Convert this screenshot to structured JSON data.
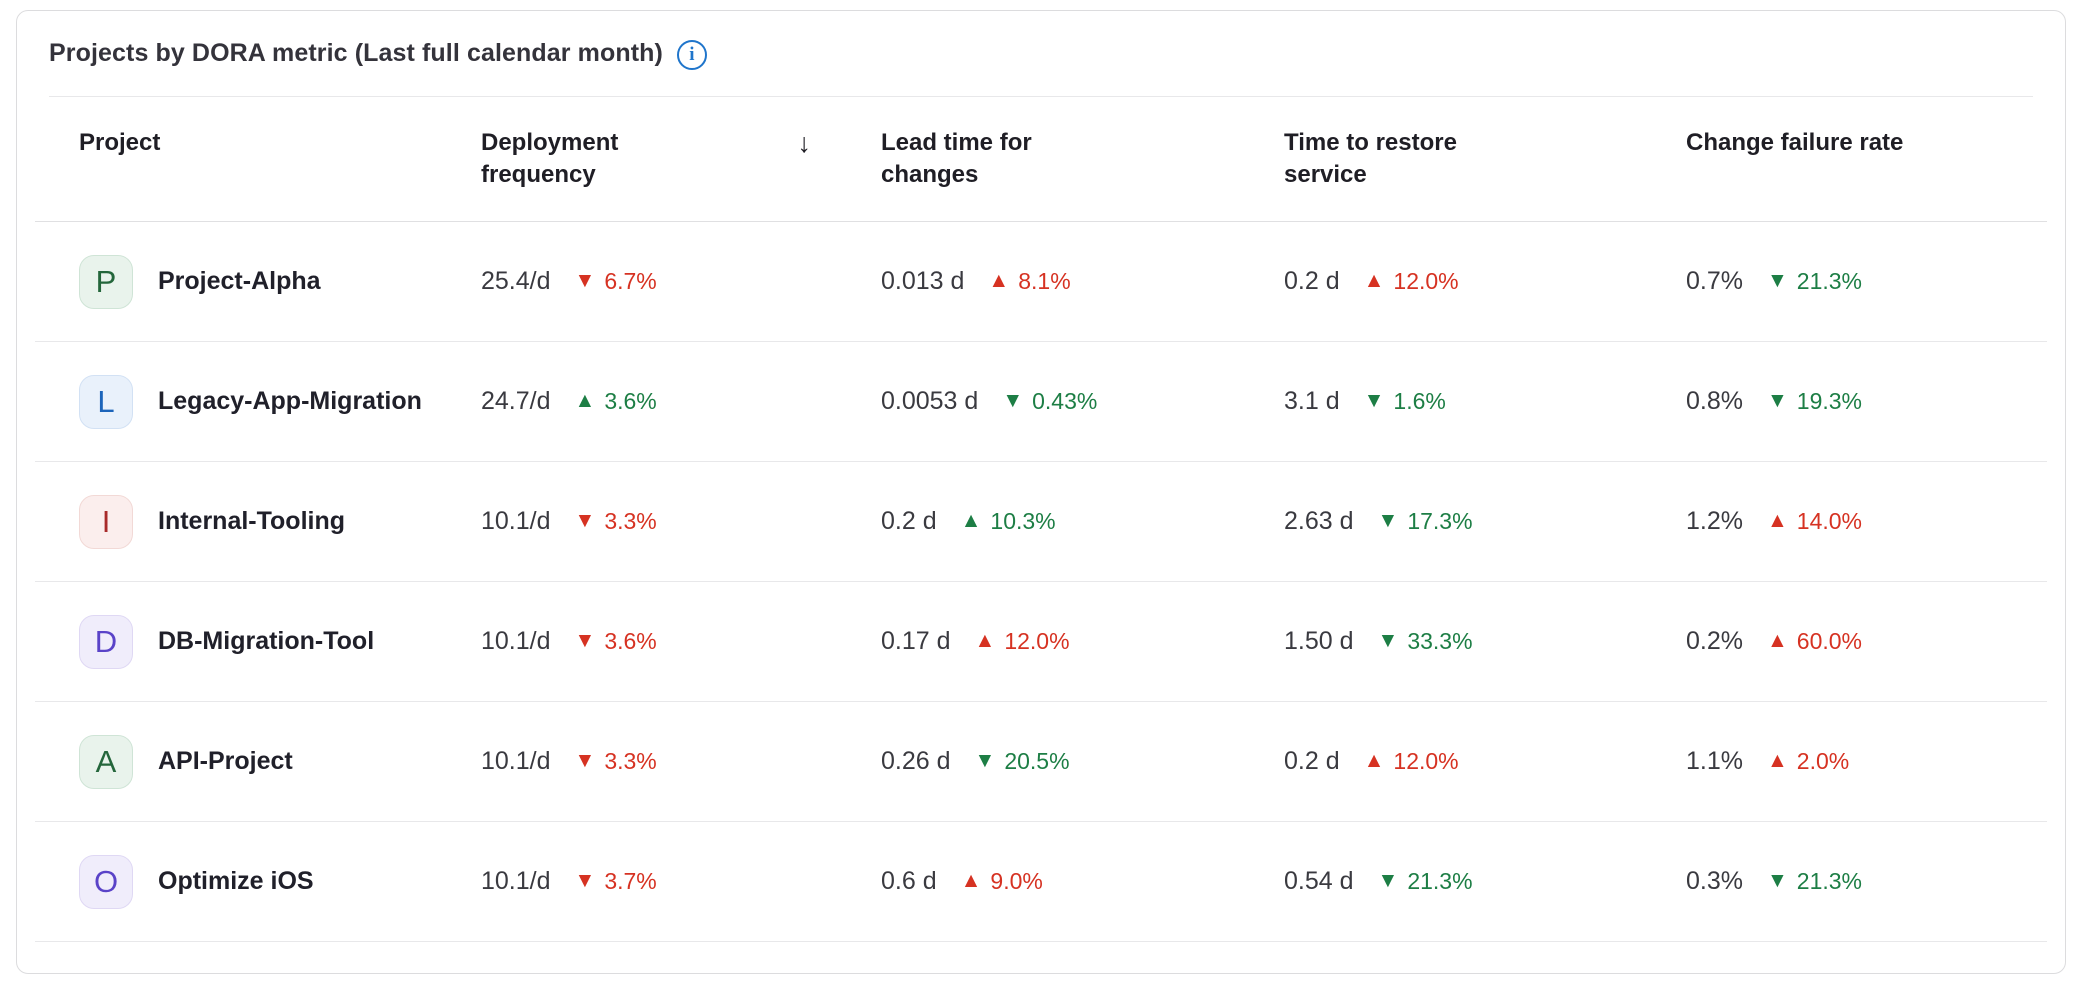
{
  "colors": {
    "positive_trend": "#1d7e45",
    "negative_trend": "#d63222",
    "info_accent": "#1f75cb",
    "card_border": "#dcdcde"
  },
  "card": {
    "title": "Projects by DORA metric (Last full calendar month)",
    "info_icon_glyph": "i"
  },
  "table": {
    "columns": [
      {
        "label": "Project"
      },
      {
        "label": "Deployment frequency",
        "sorted": "descending",
        "sort_icon": "↓"
      },
      {
        "label": "Lead time for changes"
      },
      {
        "label": "Time to restore service"
      },
      {
        "label": "Change failure rate"
      }
    ],
    "rows": [
      {
        "project": {
          "initial": "P",
          "name": "Project-Alpha",
          "theme": "green"
        },
        "deployment_frequency": {
          "value": "25.4/d",
          "arrow": "▼",
          "pct": "6.7%",
          "tone": "negative"
        },
        "lead_time_for_changes": {
          "value": "0.013 d",
          "arrow": "▲",
          "pct": "8.1%",
          "tone": "negative"
        },
        "time_to_restore_service": {
          "value": "0.2 d",
          "arrow": "▲",
          "pct": "12.0%",
          "tone": "negative"
        },
        "change_failure_rate": {
          "value": "0.7%",
          "arrow": "▼",
          "pct": "21.3%",
          "tone": "positive"
        }
      },
      {
        "project": {
          "initial": "L",
          "name": "Legacy-App-Migration",
          "theme": "blue"
        },
        "deployment_frequency": {
          "value": "24.7/d",
          "arrow": "▲",
          "pct": "3.6%",
          "tone": "positive"
        },
        "lead_time_for_changes": {
          "value": "0.0053 d",
          "arrow": "▼",
          "pct": "0.43%",
          "tone": "positive"
        },
        "time_to_restore_service": {
          "value": "3.1 d",
          "arrow": "▼",
          "pct": "1.6%",
          "tone": "positive"
        },
        "change_failure_rate": {
          "value": "0.8%",
          "arrow": "▼",
          "pct": "19.3%",
          "tone": "positive"
        }
      },
      {
        "project": {
          "initial": "I",
          "name": "Internal-Tooling",
          "theme": "red"
        },
        "deployment_frequency": {
          "value": "10.1/d",
          "arrow": "▼",
          "pct": "3.3%",
          "tone": "negative"
        },
        "lead_time_for_changes": {
          "value": "0.2 d",
          "arrow": "▲",
          "pct": "10.3%",
          "tone": "positive"
        },
        "time_to_restore_service": {
          "value": "2.63 d",
          "arrow": "▼",
          "pct": "17.3%",
          "tone": "positive"
        },
        "change_failure_rate": {
          "value": "1.2%",
          "arrow": "▲",
          "pct": "14.0%",
          "tone": "negative"
        }
      },
      {
        "project": {
          "initial": "D",
          "name": "DB-Migration-Tool",
          "theme": "purple"
        },
        "deployment_frequency": {
          "value": "10.1/d",
          "arrow": "▼",
          "pct": "3.6%",
          "tone": "negative"
        },
        "lead_time_for_changes": {
          "value": "0.17 d",
          "arrow": "▲",
          "pct": "12.0%",
          "tone": "negative"
        },
        "time_to_restore_service": {
          "value": "1.50 d",
          "arrow": "▼",
          "pct": "33.3%",
          "tone": "positive"
        },
        "change_failure_rate": {
          "value": "0.2%",
          "arrow": "▲",
          "pct": "60.0%",
          "tone": "negative"
        }
      },
      {
        "project": {
          "initial": "A",
          "name": "API-Project",
          "theme": "green"
        },
        "deployment_frequency": {
          "value": "10.1/d",
          "arrow": "▼",
          "pct": "3.3%",
          "tone": "negative"
        },
        "lead_time_for_changes": {
          "value": "0.26 d",
          "arrow": "▼",
          "pct": "20.5%",
          "tone": "positive"
        },
        "time_to_restore_service": {
          "value": "0.2 d",
          "arrow": "▲",
          "pct": "12.0%",
          "tone": "negative"
        },
        "change_failure_rate": {
          "value": "1.1%",
          "arrow": "▲",
          "pct": "2.0%",
          "tone": "negative"
        }
      },
      {
        "project": {
          "initial": "O",
          "name": "Optimize iOS",
          "theme": "purple"
        },
        "deployment_frequency": {
          "value": "10.1/d",
          "arrow": "▼",
          "pct": "3.7%",
          "tone": "negative"
        },
        "lead_time_for_changes": {
          "value": "0.6 d",
          "arrow": "▲",
          "pct": "9.0%",
          "tone": "negative"
        },
        "time_to_restore_service": {
          "value": "0.54 d",
          "arrow": "▼",
          "pct": "21.3%",
          "tone": "positive"
        },
        "change_failure_rate": {
          "value": "0.3%",
          "arrow": "▼",
          "pct": "21.3%",
          "tone": "positive"
        }
      }
    ]
  }
}
